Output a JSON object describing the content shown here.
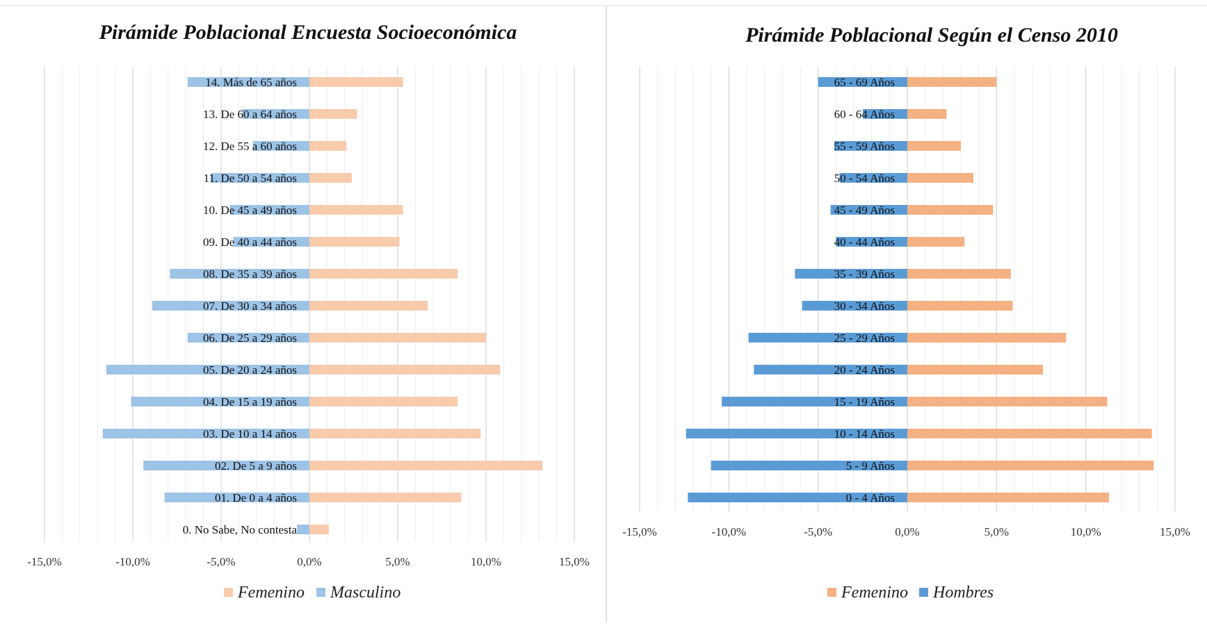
{
  "chart_data": [
    {
      "type": "bar",
      "orientation": "horizontal",
      "title": "Pirámide Poblacional Encuesta Socioeconómica",
      "categories": [
        "0. No Sabe, No contesta",
        "01. De 0 a 4 años",
        "02. De 5 a 9 años",
        "03. De 10 a 14 años",
        "04. De 15 a 19 años",
        "05. De 20 a 24 años",
        "06. De 25 a 29 años",
        "07. De 30 a 34 años",
        "08. De 35 a 39 años",
        "09. De 40 a 44 años",
        "10. De 45 a 49 años",
        "11. De 50 a 54 años",
        "12. De 55 a 60 años",
        "13. De 60 a 64 años",
        "14. Más de 65 años"
      ],
      "series": [
        {
          "name": "Femenino",
          "color": "#F8CBAD",
          "values": [
            1.1,
            8.6,
            13.2,
            9.7,
            8.4,
            10.8,
            10.0,
            6.7,
            8.4,
            5.1,
            5.3,
            2.4,
            2.1,
            2.7,
            5.3
          ]
        },
        {
          "name": "Masculino",
          "color": "#9DC3E6",
          "values": [
            -0.7,
            -8.2,
            -9.4,
            -11.7,
            -10.1,
            -11.5,
            -6.9,
            -8.9,
            -7.9,
            -4.3,
            -4.5,
            -5.6,
            -3.2,
            -3.8,
            -6.9
          ]
        }
      ],
      "xlim": [
        -15,
        15
      ],
      "xticks": [
        "-15,0%",
        "-10,0%",
        "-5,0%",
        "0,0%",
        "5,0%",
        "10,0%",
        "15,0%"
      ],
      "legend": "bottom",
      "grid": true
    },
    {
      "type": "bar",
      "orientation": "horizontal",
      "title": "Pirámide Poblacional Según el Censo 2010",
      "categories": [
        "0 - 4 Años",
        "5 - 9 Años",
        "10 - 14 Años",
        "15 - 19 Años",
        "20 - 24 Años",
        "25 - 29 Años",
        "30 - 34 Años",
        "35 - 39 Años",
        "40 - 44 Años",
        "45 - 49 Años",
        "50 - 54 Años",
        "55 - 59 Años",
        "60 - 64 Años",
        "65 - 69 Años"
      ],
      "series": [
        {
          "name": "Femenino",
          "color": "#F4B183",
          "values": [
            11.3,
            13.8,
            13.7,
            11.2,
            7.6,
            8.9,
            5.9,
            5.8,
            3.2,
            4.8,
            3.7,
            3.0,
            2.2,
            5.0
          ]
        },
        {
          "name": "Hombres",
          "color": "#5B9BD5",
          "values": [
            -12.3,
            -11.0,
            -12.4,
            -10.4,
            -8.6,
            -8.9,
            -5.9,
            -6.3,
            -4.0,
            -4.3,
            -3.8,
            -4.1,
            -2.5,
            -5.0
          ]
        }
      ],
      "xlim": [
        -15,
        15
      ],
      "xticks": [
        "-15,0%",
        "-10,0%",
        "-5,0%",
        "0,0%",
        "5,0%",
        "10,0%",
        "15,0%"
      ],
      "legend": "bottom",
      "grid": true
    }
  ]
}
